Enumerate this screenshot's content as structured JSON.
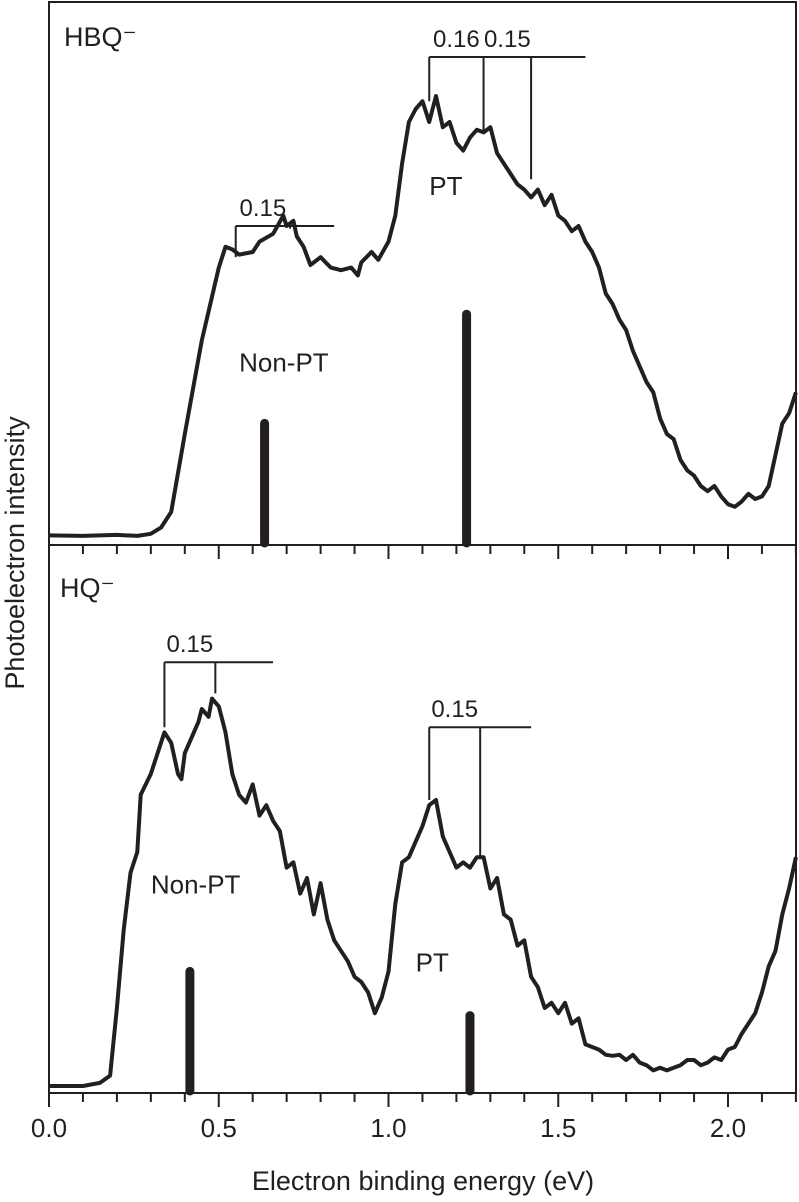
{
  "figure": {
    "xlabel": "Electron binding energy (eV)",
    "ylabel": "Photoelectron intensity",
    "x_ticks": [
      "0.0",
      "0.5",
      "1.0",
      "1.5",
      "2.0"
    ],
    "colors": {
      "line": "#231f20",
      "background": "#ffffff"
    }
  },
  "chart_data": [
    {
      "type": "line",
      "title": "HBQ⁻",
      "panel": "top",
      "xlabel": "Electron binding energy (eV)",
      "ylabel": "Photoelectron intensity",
      "xlim": [
        0.0,
        2.2
      ],
      "ylim": [
        0,
        1
      ],
      "grid": false,
      "series": [
        {
          "name": "HBQ⁻ photoelectron spectrum",
          "x": [
            0.0,
            0.1,
            0.2,
            0.26,
            0.3,
            0.33,
            0.36,
            0.4,
            0.45,
            0.5,
            0.52,
            0.54,
            0.56,
            0.6,
            0.62,
            0.66,
            0.69,
            0.7,
            0.72,
            0.73,
            0.75,
            0.77,
            0.8,
            0.83,
            0.86,
            0.89,
            0.91,
            0.92,
            0.95,
            0.97,
            1.0,
            1.02,
            1.04,
            1.06,
            1.08,
            1.1,
            1.12,
            1.14,
            1.16,
            1.18,
            1.2,
            1.22,
            1.24,
            1.26,
            1.28,
            1.3,
            1.32,
            1.34,
            1.36,
            1.38,
            1.4,
            1.42,
            1.44,
            1.46,
            1.48,
            1.5,
            1.52,
            1.54,
            1.56,
            1.58,
            1.6,
            1.62,
            1.64,
            1.66,
            1.68,
            1.7,
            1.72,
            1.74,
            1.76,
            1.78,
            1.8,
            1.82,
            1.84,
            1.86,
            1.88,
            1.9,
            1.92,
            1.94,
            1.96,
            1.98,
            2.0,
            2.02,
            2.04,
            2.06,
            2.08,
            2.1,
            2.12,
            2.14,
            2.16,
            2.18,
            2.2
          ],
          "y": [
            0.005,
            0.004,
            0.006,
            0.004,
            0.008,
            0.02,
            0.05,
            0.2,
            0.38,
            0.52,
            0.56,
            0.555,
            0.545,
            0.55,
            0.57,
            0.585,
            0.62,
            0.6,
            0.61,
            0.58,
            0.56,
            0.525,
            0.54,
            0.52,
            0.515,
            0.52,
            0.505,
            0.53,
            0.55,
            0.535,
            0.57,
            0.62,
            0.72,
            0.8,
            0.825,
            0.84,
            0.8,
            0.85,
            0.79,
            0.8,
            0.76,
            0.745,
            0.77,
            0.785,
            0.78,
            0.79,
            0.74,
            0.72,
            0.7,
            0.68,
            0.67,
            0.655,
            0.67,
            0.64,
            0.66,
            0.62,
            0.61,
            0.59,
            0.6,
            0.57,
            0.55,
            0.52,
            0.47,
            0.45,
            0.42,
            0.4,
            0.36,
            0.33,
            0.3,
            0.28,
            0.23,
            0.2,
            0.19,
            0.15,
            0.13,
            0.12,
            0.1,
            0.09,
            0.1,
            0.08,
            0.065,
            0.06,
            0.07,
            0.085,
            0.075,
            0.08,
            0.1,
            0.16,
            0.22,
            0.24,
            0.28
          ]
        }
      ],
      "stick_spectrum": [
        {
          "x": 0.635,
          "height": 0.23,
          "label": "Non-PT"
        },
        {
          "x": 1.23,
          "height": 0.44,
          "label": "PT"
        }
      ],
      "annotations": [
        {
          "text": "Non-PT",
          "x": 0.56,
          "y": 0.32
        },
        {
          "text": "PT",
          "x": 1.12,
          "y": 0.66
        },
        {
          "type": "progression",
          "label": "0.15",
          "origin": 0.55,
          "ticks": [
            0.55,
            0.71
          ],
          "bar_end": 0.84,
          "bar_y": 0.6,
          "tick_bottoms": [
            0.54,
            0.595
          ]
        },
        {
          "type": "progression",
          "labels": [
            "0.16",
            "0.15"
          ],
          "origin": 1.12,
          "ticks": [
            1.12,
            1.28,
            1.42
          ],
          "bar_end": 1.58,
          "bar_y": 0.925,
          "tick_bottoms": [
            0.84,
            0.78,
            0.69
          ]
        }
      ]
    },
    {
      "type": "line",
      "title": "HQ⁻",
      "panel": "bottom",
      "xlabel": "Electron binding energy (eV)",
      "ylabel": "Photoelectron intensity",
      "xlim": [
        0.0,
        2.2
      ],
      "ylim": [
        0,
        1
      ],
      "grid": false,
      "series": [
        {
          "name": "HQ⁻ photoelectron spectrum",
          "x": [
            0.0,
            0.1,
            0.15,
            0.18,
            0.2,
            0.22,
            0.24,
            0.26,
            0.27,
            0.3,
            0.32,
            0.34,
            0.36,
            0.38,
            0.39,
            0.4,
            0.42,
            0.44,
            0.45,
            0.47,
            0.48,
            0.5,
            0.52,
            0.54,
            0.56,
            0.58,
            0.6,
            0.62,
            0.64,
            0.66,
            0.68,
            0.7,
            0.72,
            0.74,
            0.76,
            0.78,
            0.8,
            0.82,
            0.84,
            0.86,
            0.88,
            0.9,
            0.92,
            0.94,
            0.96,
            0.98,
            1.0,
            1.02,
            1.04,
            1.06,
            1.08,
            1.1,
            1.12,
            1.14,
            1.16,
            1.18,
            1.2,
            1.22,
            1.24,
            1.26,
            1.28,
            1.3,
            1.32,
            1.34,
            1.36,
            1.38,
            1.4,
            1.42,
            1.44,
            1.46,
            1.48,
            1.5,
            1.52,
            1.54,
            1.56,
            1.58,
            1.6,
            1.62,
            1.64,
            1.66,
            1.68,
            1.7,
            1.72,
            1.74,
            1.76,
            1.78,
            1.8,
            1.82,
            1.84,
            1.86,
            1.88,
            1.9,
            1.92,
            1.94,
            1.96,
            1.98,
            2.0,
            2.02,
            2.04,
            2.06,
            2.08,
            2.1,
            2.12,
            2.14,
            2.16,
            2.18,
            2.2
          ],
          "y": [
            0.0,
            0.0,
            0.006,
            0.02,
            0.15,
            0.3,
            0.41,
            0.45,
            0.56,
            0.6,
            0.64,
            0.68,
            0.66,
            0.6,
            0.59,
            0.64,
            0.67,
            0.7,
            0.725,
            0.71,
            0.745,
            0.73,
            0.68,
            0.6,
            0.56,
            0.545,
            0.58,
            0.52,
            0.54,
            0.51,
            0.49,
            0.42,
            0.43,
            0.37,
            0.4,
            0.33,
            0.39,
            0.32,
            0.28,
            0.26,
            0.24,
            0.21,
            0.2,
            0.18,
            0.14,
            0.17,
            0.22,
            0.35,
            0.43,
            0.44,
            0.47,
            0.5,
            0.54,
            0.55,
            0.48,
            0.45,
            0.42,
            0.43,
            0.42,
            0.44,
            0.44,
            0.38,
            0.4,
            0.33,
            0.32,
            0.27,
            0.28,
            0.21,
            0.19,
            0.15,
            0.16,
            0.14,
            0.16,
            0.12,
            0.13,
            0.08,
            0.075,
            0.07,
            0.06,
            0.058,
            0.06,
            0.05,
            0.06,
            0.045,
            0.04,
            0.03,
            0.035,
            0.03,
            0.035,
            0.04,
            0.05,
            0.05,
            0.04,
            0.045,
            0.055,
            0.05,
            0.07,
            0.075,
            0.1,
            0.12,
            0.14,
            0.18,
            0.23,
            0.26,
            0.33,
            0.38,
            0.44
          ]
        }
      ],
      "stick_spectrum": [
        {
          "x": 0.415,
          "height": 0.23,
          "label": "Non-PT"
        },
        {
          "x": 1.24,
          "height": 0.145,
          "label": "PT"
        }
      ],
      "annotations": [
        {
          "text": "Non-PT",
          "x": 0.3,
          "y": 0.37
        },
        {
          "text": "PT",
          "x": 1.08,
          "y": 0.22
        },
        {
          "type": "progression",
          "label": "0.15",
          "origin": 0.34,
          "ticks": [
            0.34,
            0.49
          ],
          "bar_end": 0.66,
          "bar_y": 0.815,
          "tick_bottoms": [
            0.69,
            0.755
          ]
        },
        {
          "type": "progression",
          "label": "0.15",
          "origin": 1.12,
          "ticks": [
            1.12,
            1.27
          ],
          "bar_end": 1.42,
          "bar_y": 0.69,
          "tick_bottoms": [
            0.55,
            0.44
          ]
        }
      ]
    }
  ]
}
